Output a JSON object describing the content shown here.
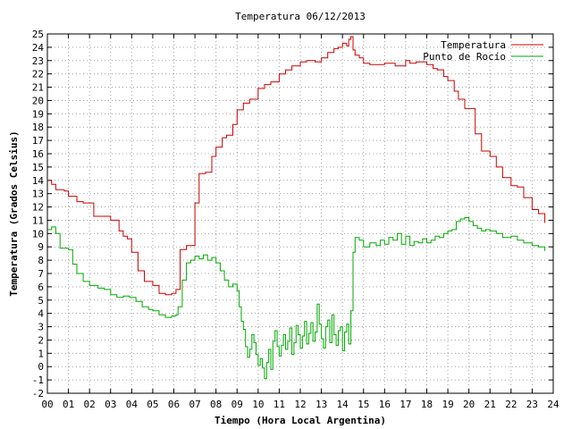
{
  "chart_data": {
    "type": "line",
    "title": "Temperatura 06/12/2013",
    "xlabel": "Tiempo (Hora Local Argentina)",
    "ylabel": "Temperatura (Grados Celsius)",
    "xlim": [
      0,
      24
    ],
    "ylim": [
      -2,
      25
    ],
    "grid": true,
    "legend_position": "top-right",
    "x_ticks": [
      "00",
      "01",
      "02",
      "03",
      "04",
      "05",
      "06",
      "07",
      "08",
      "09",
      "10",
      "11",
      "12",
      "13",
      "14",
      "15",
      "16",
      "17",
      "18",
      "19",
      "20",
      "21",
      "22",
      "23",
      "24"
    ],
    "y_ticks": [
      -2,
      -1,
      0,
      1,
      2,
      3,
      4,
      5,
      6,
      7,
      8,
      9,
      10,
      11,
      12,
      13,
      14,
      15,
      16,
      17,
      18,
      19,
      20,
      21,
      22,
      23,
      24,
      25
    ],
    "series": [
      {
        "name": "Temperatura",
        "color": "#cc0000",
        "x": [
          0,
          0.2,
          0.4,
          0.8,
          1.0,
          1.4,
          1.7,
          2.2,
          2.6,
          3.0,
          3.4,
          3.6,
          3.8,
          4.0,
          4.3,
          4.6,
          5.0,
          5.3,
          5.6,
          5.9,
          6.1,
          6.3,
          6.6,
          6.8,
          7.0,
          7.2,
          7.5,
          7.8,
          8.0,
          8.3,
          8.5,
          8.8,
          9.0,
          9.3,
          9.6,
          10.0,
          10.3,
          10.6,
          11.0,
          11.3,
          11.6,
          12.0,
          12.3,
          12.7,
          13.0,
          13.3,
          13.6,
          13.8,
          14.0,
          14.2,
          14.3,
          14.4,
          14.5,
          14.6,
          14.8,
          15.0,
          15.3,
          15.6,
          16.0,
          16.5,
          17.0,
          17.2,
          17.5,
          18.0,
          18.3,
          18.5,
          18.8,
          19.0,
          19.3,
          19.5,
          19.8,
          20.0,
          20.3,
          20.6,
          21.0,
          21.3,
          21.6,
          22.0,
          22.3,
          22.6,
          23.0,
          23.3,
          23.6
        ],
        "y": [
          14.0,
          13.7,
          13.3,
          13.2,
          12.8,
          12.4,
          12.3,
          11.3,
          11.3,
          11.0,
          10.2,
          9.8,
          9.6,
          8.6,
          7.2,
          6.4,
          6.1,
          5.5,
          5.4,
          5.5,
          5.8,
          8.8,
          9.1,
          9.1,
          12.3,
          14.5,
          14.6,
          15.8,
          16.5,
          17.2,
          17.4,
          18.2,
          19.3,
          19.8,
          20.1,
          20.9,
          21.2,
          21.4,
          22.0,
          22.3,
          22.6,
          22.9,
          23.0,
          22.9,
          23.2,
          23.6,
          23.9,
          24.0,
          24.3,
          24.1,
          24.6,
          24.8,
          23.8,
          23.4,
          23.2,
          22.8,
          22.7,
          22.7,
          22.8,
          22.6,
          23.0,
          22.8,
          22.9,
          22.7,
          22.4,
          22.3,
          21.8,
          21.5,
          20.7,
          20.1,
          19.4,
          19.4,
          17.5,
          16.2,
          15.8,
          15.0,
          14.2,
          13.6,
          13.5,
          12.7,
          11.8,
          11.5,
          10.8
        ]
      },
      {
        "name": "Punto de Rocío",
        "color": "#00aa00",
        "x": [
          0,
          0.2,
          0.4,
          0.6,
          0.8,
          1.0,
          1.2,
          1.4,
          1.7,
          2.0,
          2.4,
          2.7,
          3.0,
          3.3,
          3.6,
          3.9,
          4.2,
          4.5,
          4.8,
          5.0,
          5.3,
          5.6,
          5.9,
          6.1,
          6.2,
          6.4,
          6.6,
          6.8,
          7.0,
          7.2,
          7.4,
          7.6,
          7.8,
          8.0,
          8.2,
          8.4,
          8.6,
          8.8,
          9.0,
          9.1,
          9.2,
          9.3,
          9.4,
          9.5,
          9.6,
          9.7,
          9.8,
          9.9,
          10.0,
          10.1,
          10.2,
          10.3,
          10.4,
          10.5,
          10.6,
          10.7,
          10.8,
          10.9,
          11.0,
          11.1,
          11.2,
          11.3,
          11.4,
          11.5,
          11.6,
          11.7,
          11.8,
          11.9,
          12.0,
          12.1,
          12.2,
          12.3,
          12.4,
          12.5,
          12.6,
          12.7,
          12.8,
          12.9,
          13.0,
          13.1,
          13.2,
          13.3,
          13.4,
          13.5,
          13.6,
          13.7,
          13.8,
          13.9,
          14.0,
          14.1,
          14.2,
          14.3,
          14.4,
          14.5,
          14.6,
          14.8,
          15.0,
          15.3,
          15.6,
          15.8,
          16.0,
          16.2,
          16.4,
          16.6,
          16.8,
          17.0,
          17.2,
          17.4,
          17.6,
          17.8,
          18.0,
          18.2,
          18.4,
          18.6,
          18.8,
          19.0,
          19.2,
          19.4,
          19.6,
          19.8,
          20.0,
          20.2,
          20.4,
          20.6,
          20.8,
          21.0,
          21.3,
          21.6,
          22.0,
          22.3,
          22.6,
          23.0,
          23.3,
          23.6
        ],
        "y": [
          10.3,
          10.5,
          10.0,
          8.9,
          8.9,
          8.8,
          7.7,
          7.0,
          6.4,
          6.1,
          5.9,
          5.8,
          5.4,
          5.2,
          5.3,
          5.2,
          4.9,
          4.5,
          4.3,
          4.2,
          3.9,
          3.7,
          3.8,
          3.9,
          4.5,
          6.5,
          7.8,
          8.0,
          8.3,
          8.1,
          8.4,
          8.0,
          8.2,
          7.8,
          7.2,
          6.5,
          6.0,
          6.2,
          5.7,
          4.5,
          3.4,
          2.8,
          1.5,
          0.7,
          1.3,
          2.4,
          1.8,
          0.9,
          0.1,
          0.6,
          -0.1,
          -0.9,
          0.3,
          1.3,
          -0.2,
          1.9,
          2.7,
          1.5,
          0.8,
          1.6,
          2.4,
          1.3,
          1.9,
          2.9,
          0.9,
          1.8,
          3.1,
          2.4,
          1.4,
          2.3,
          3.4,
          1.7,
          2.5,
          3.3,
          1.9,
          2.6,
          4.7,
          3.2,
          2.1,
          1.4,
          3.0,
          3.5,
          1.8,
          3.9,
          2.4,
          1.6,
          2.7,
          3.0,
          1.2,
          2.6,
          3.2,
          1.7,
          4.2,
          8.6,
          9.7,
          9.5,
          9.0,
          9.3,
          9.1,
          9.5,
          9.2,
          9.7,
          9.5,
          10.0,
          9.2,
          9.8,
          9.1,
          9.4,
          9.3,
          9.6,
          9.3,
          9.5,
          9.8,
          9.7,
          10.0,
          10.2,
          10.3,
          10.9,
          11.1,
          11.2,
          10.9,
          10.6,
          10.4,
          10.2,
          10.3,
          10.2,
          10.0,
          9.7,
          9.8,
          9.5,
          9.3,
          9.1,
          9.0,
          8.7
        ]
      }
    ]
  }
}
